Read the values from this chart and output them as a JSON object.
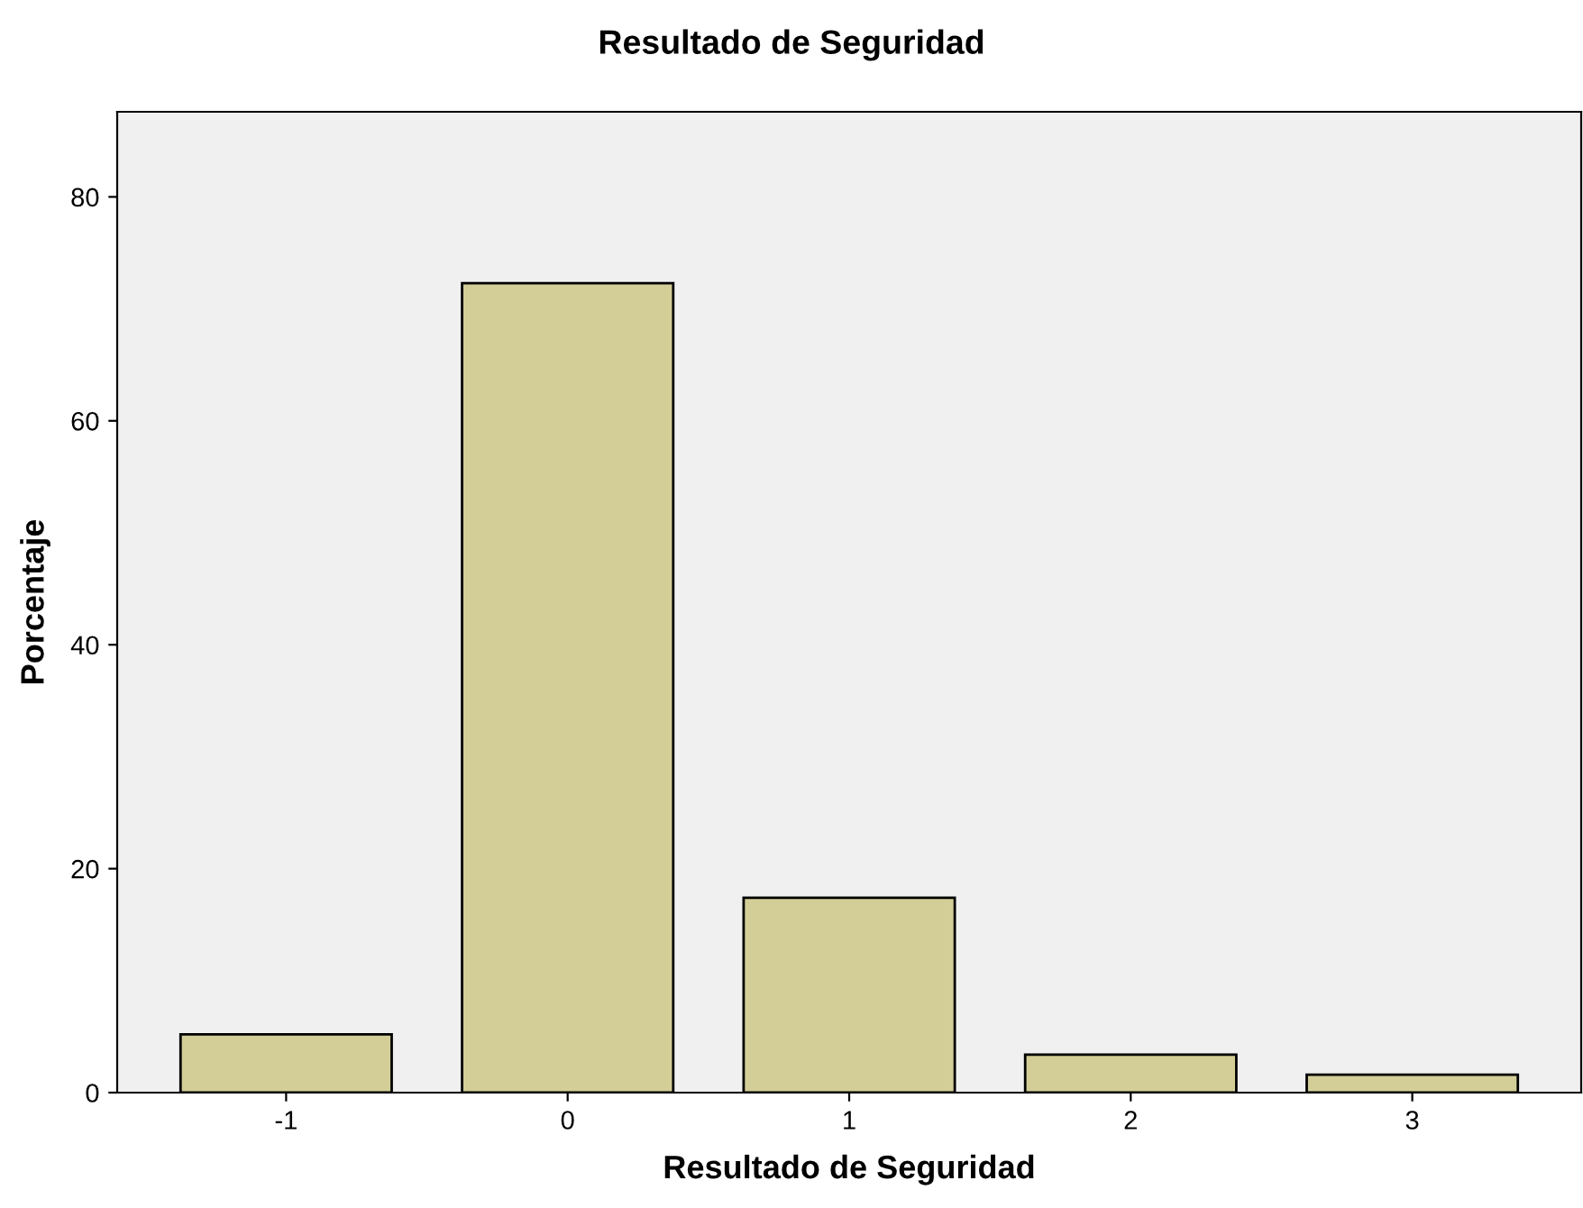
{
  "chart_data": {
    "type": "bar",
    "title": "Resultado de Seguridad",
    "xlabel": "Resultado de Seguridad",
    "ylabel": "Porcentaje",
    "categories": [
      "-1",
      "0",
      "1",
      "2",
      "3"
    ],
    "values": [
      5.2,
      72.3,
      17.4,
      3.4,
      1.6
    ],
    "color": "#d3ce97",
    "ylim": [
      0,
      87.6
    ],
    "yticks": [
      0,
      20,
      40,
      60,
      80
    ],
    "grid": false,
    "legend": false
  }
}
